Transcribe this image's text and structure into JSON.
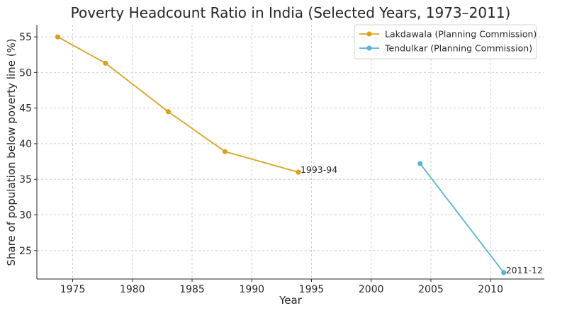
{
  "chart_data": {
    "type": "line",
    "title": "Poverty Headcount Ratio in India (Selected Years, 1973–2011)",
    "xlabel": "Year",
    "ylabel": "Share of population below poverty line (%)",
    "xlim": [
      1972.0,
      2014.5
    ],
    "ylim": [
      21.0,
      56.7
    ],
    "xticks": [
      1975,
      1980,
      1985,
      1990,
      1995,
      2000,
      2005,
      2010
    ],
    "yticks": [
      25,
      30,
      35,
      40,
      45,
      50,
      55
    ],
    "grid": true,
    "legend_position": "top-right",
    "series": [
      {
        "name": "Lakdawala (Planning Commission)",
        "color": "#DAA21C",
        "points": [
          {
            "x": 1973.75,
            "y": 55.0
          },
          {
            "x": 1977.75,
            "y": 51.3
          },
          {
            "x": 1983.0,
            "y": 44.5
          },
          {
            "x": 1987.75,
            "y": 38.9
          },
          {
            "x": 1993.9,
            "y": 36.0
          }
        ]
      },
      {
        "name": "Tendulkar (Planning Commission)",
        "color": "#5AB3D6",
        "points": [
          {
            "x": 2004.1,
            "y": 37.2
          },
          {
            "x": 2011.1,
            "y": 21.9
          }
        ]
      }
    ],
    "annotations": [
      {
        "text": "1993-94",
        "series": 0,
        "point": 4
      },
      {
        "text": "2011-12",
        "series": 1,
        "point": 1
      }
    ]
  }
}
